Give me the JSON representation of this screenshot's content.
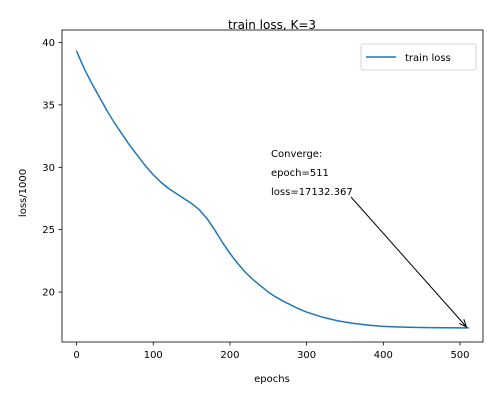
{
  "chart_data": {
    "type": "line",
    "title": "train loss, K=3",
    "xlabel": "epochs",
    "ylabel": "loss/1000",
    "xlim": [
      -19,
      530
    ],
    "ylim": [
      16.0,
      41.0
    ],
    "xticks": [
      0,
      100,
      200,
      300,
      400,
      500
    ],
    "yticks": [
      20,
      25,
      30,
      35,
      40
    ],
    "grid": false,
    "legend_position": "top-right",
    "series": [
      {
        "name": "train loss",
        "color": "#1f77b4",
        "x": [
          0,
          10,
          20,
          30,
          40,
          50,
          60,
          70,
          80,
          90,
          100,
          110,
          120,
          130,
          140,
          150,
          160,
          170,
          180,
          190,
          200,
          210,
          220,
          230,
          240,
          250,
          260,
          270,
          280,
          290,
          300,
          320,
          340,
          360,
          380,
          400,
          420,
          440,
          460,
          480,
          500,
          511
        ],
        "y": [
          39.3,
          37.9,
          36.7,
          35.6,
          34.5,
          33.5,
          32.6,
          31.7,
          30.9,
          30.1,
          29.4,
          28.8,
          28.3,
          27.9,
          27.5,
          27.1,
          26.6,
          25.9,
          25.0,
          24.0,
          23.1,
          22.3,
          21.6,
          21.0,
          20.5,
          20.0,
          19.6,
          19.25,
          18.95,
          18.65,
          18.4,
          18.0,
          17.7,
          17.5,
          17.35,
          17.25,
          17.2,
          17.17,
          17.15,
          17.14,
          17.135,
          17.132
        ]
      }
    ],
    "annotations": [
      {
        "lines": [
          "Converge:",
          "epoch=511",
          "loss=17132.367"
        ],
        "point": [
          511,
          17.132
        ]
      }
    ]
  }
}
